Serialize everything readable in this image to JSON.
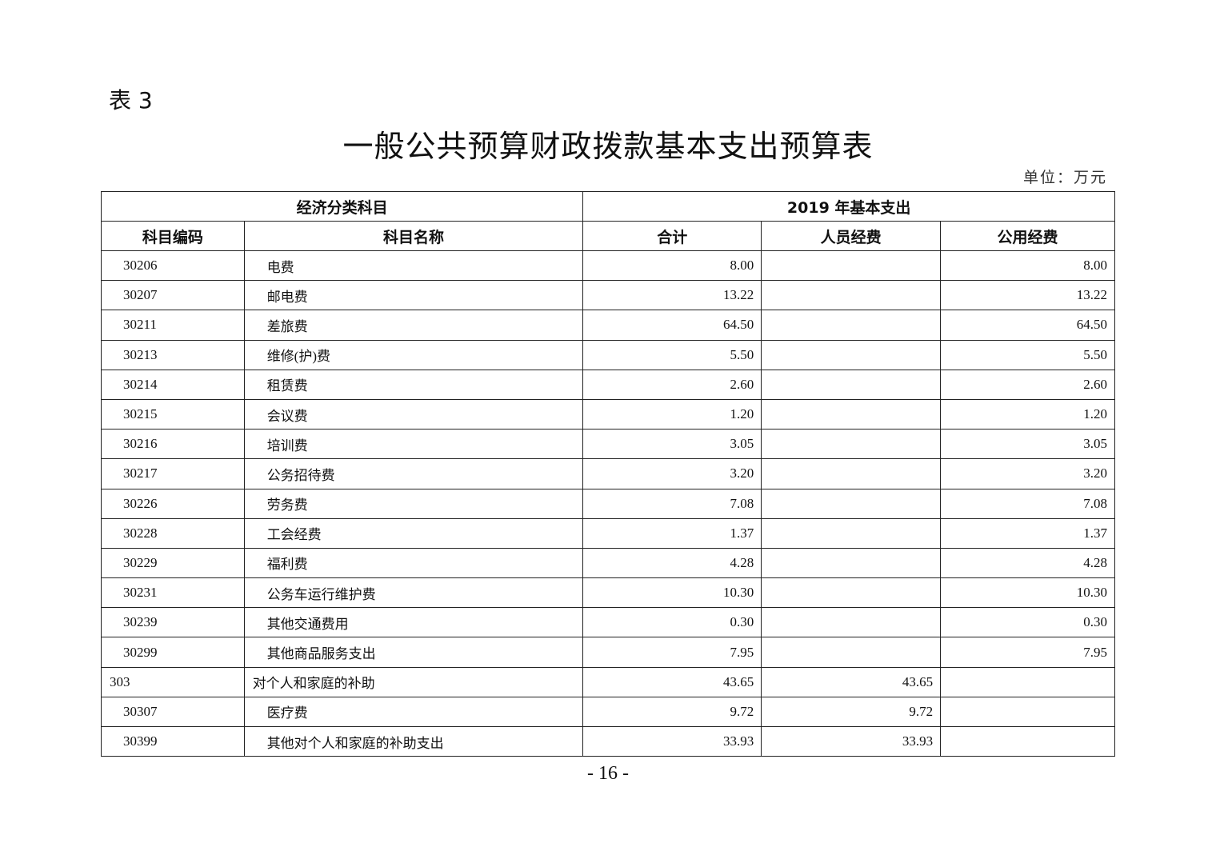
{
  "table_label": "表 3",
  "title": "一般公共预算财政拨款基本支出预算表",
  "unit": "单位：万元",
  "header": {
    "group_left": "经济分类科目",
    "group_right": "2019 年基本支出",
    "columns": [
      "科目编码",
      "科目名称",
      "合计",
      "人员经费",
      "公用经费"
    ]
  },
  "rows": [
    {
      "code": "30206",
      "name": "电费",
      "total": "8.00",
      "personnel": "",
      "public": "8.00",
      "level": 2
    },
    {
      "code": "30207",
      "name": "邮电费",
      "total": "13.22",
      "personnel": "",
      "public": "13.22",
      "level": 2
    },
    {
      "code": "30211",
      "name": "差旅费",
      "total": "64.50",
      "personnel": "",
      "public": "64.50",
      "level": 2
    },
    {
      "code": "30213",
      "name": "维修(护)费",
      "total": "5.50",
      "personnel": "",
      "public": "5.50",
      "level": 2
    },
    {
      "code": "30214",
      "name": "租赁费",
      "total": "2.60",
      "personnel": "",
      "public": "2.60",
      "level": 2
    },
    {
      "code": "30215",
      "name": "会议费",
      "total": "1.20",
      "personnel": "",
      "public": "1.20",
      "level": 2
    },
    {
      "code": "30216",
      "name": "培训费",
      "total": "3.05",
      "personnel": "",
      "public": "3.05",
      "level": 2
    },
    {
      "code": "30217",
      "name": "公务招待费",
      "total": "3.20",
      "personnel": "",
      "public": "3.20",
      "level": 2
    },
    {
      "code": "30226",
      "name": "劳务费",
      "total": "7.08",
      "personnel": "",
      "public": "7.08",
      "level": 2
    },
    {
      "code": "30228",
      "name": "工会经费",
      "total": "1.37",
      "personnel": "",
      "public": "1.37",
      "level": 2
    },
    {
      "code": "30229",
      "name": "福利费",
      "total": "4.28",
      "personnel": "",
      "public": "4.28",
      "level": 2
    },
    {
      "code": "30231",
      "name": "公务车运行维护费",
      "total": "10.30",
      "personnel": "",
      "public": "10.30",
      "level": 2
    },
    {
      "code": "30239",
      "name": "其他交通费用",
      "total": "0.30",
      "personnel": "",
      "public": "0.30",
      "level": 2
    },
    {
      "code": "30299",
      "name": "其他商品服务支出",
      "total": "7.95",
      "personnel": "",
      "public": "7.95",
      "level": 2
    },
    {
      "code": "303",
      "name": "对个人和家庭的补助",
      "total": "43.65",
      "personnel": "43.65",
      "public": "",
      "level": 1
    },
    {
      "code": "30307",
      "name": "医疗费",
      "total": "9.72",
      "personnel": "9.72",
      "public": "",
      "level": 2
    },
    {
      "code": "30399",
      "name": "其他对个人和家庭的补助支出",
      "total": "33.93",
      "personnel": "33.93",
      "public": "",
      "level": 2
    }
  ],
  "page_number": "- 16 -"
}
